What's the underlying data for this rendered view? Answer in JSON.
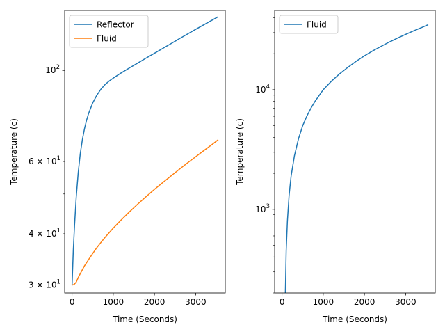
{
  "chart_data": [
    {
      "type": "line",
      "xlabel": "Time (Seconds)",
      "ylabel": "Temperature (c)",
      "yscale": "log",
      "xlim": [
        -180,
        3720
      ],
      "ylim": [
        28.7,
        140.0
      ],
      "x_ticks": [
        {
          "value": 0,
          "label": "0"
        },
        {
          "value": 1000,
          "label": "1000"
        },
        {
          "value": 2000,
          "label": "2000"
        },
        {
          "value": 3000,
          "label": "3000"
        }
      ],
      "y_major_ticks": [
        {
          "value": 100,
          "label": "10",
          "exp": "2"
        }
      ],
      "y_minor_ticks": [
        {
          "value": 30,
          "label": "3 × 10",
          "exp": "1"
        },
        {
          "value": 40,
          "label": "4 × 10",
          "exp": "1"
        },
        {
          "value": 60,
          "label": "6 × 10",
          "exp": "1"
        },
        {
          "value": 50,
          "label": "",
          "exp": ""
        }
      ],
      "legend": "upper-left",
      "series": [
        {
          "name": "Reflector",
          "color": "#1f77b4",
          "x": [
            0,
            30,
            60,
            100,
            150,
            200,
            250,
            300,
            350,
            400,
            500,
            600,
            700,
            800,
            900,
            1000,
            1200,
            1400,
            1600,
            1800,
            2000,
            2200,
            2400,
            2600,
            2800,
            3000,
            3200,
            3400,
            3550
          ],
          "y": [
            30.0,
            36.5,
            42.0,
            49.0,
            56.5,
            62.8,
            67.8,
            72.0,
            75.5,
            78.5,
            83.3,
            87.0,
            90.0,
            92.4,
            94.2,
            95.8,
            98.7,
            101.5,
            104.3,
            107.2,
            110.1,
            113.1,
            116.2,
            119.4,
            122.6,
            125.9,
            129.2,
            132.6,
            135.2
          ]
        },
        {
          "name": "Fluid",
          "color": "#ff7f0e",
          "x": [
            0,
            50,
            100,
            150,
            200,
            300,
            400,
            500,
            600,
            700,
            800,
            1000,
            1200,
            1400,
            1600,
            1800,
            2000,
            2200,
            2400,
            2600,
            2800,
            3000,
            3200,
            3400,
            3550
          ],
          "y": [
            30.0,
            30.1,
            30.5,
            31.3,
            32.0,
            33.4,
            34.6,
            35.8,
            37.0,
            38.1,
            39.2,
            41.3,
            43.3,
            45.3,
            47.3,
            49.3,
            51.3,
            53.3,
            55.3,
            57.4,
            59.5,
            61.6,
            63.8,
            66.0,
            67.8
          ]
        }
      ]
    },
    {
      "type": "line",
      "xlabel": "Time (Seconds)",
      "ylabel": "Temperature (c)",
      "yscale": "log",
      "xlim": [
        -180,
        3720
      ],
      "ylim": [
        200,
        46000
      ],
      "x_ticks": [
        {
          "value": 0,
          "label": "0"
        },
        {
          "value": 1000,
          "label": "1000"
        },
        {
          "value": 2000,
          "label": "2000"
        },
        {
          "value": 3000,
          "label": "3000"
        }
      ],
      "y_major_ticks": [
        {
          "value": 1000,
          "label": "10",
          "exp": "3"
        },
        {
          "value": 10000,
          "label": "10",
          "exp": "4"
        }
      ],
      "legend": "upper-left",
      "series": [
        {
          "name": "Fluid",
          "color": "#1f77b4",
          "x": [
            80,
            100,
            130,
            170,
            220,
            300,
            400,
            500,
            600,
            700,
            800,
            1000,
            1200,
            1400,
            1600,
            1800,
            2000,
            2200,
            2400,
            2600,
            2800,
            3000,
            3200,
            3400,
            3550
          ],
          "y": [
            200,
            450,
            800,
            1300,
            1900,
            2800,
            3900,
            5000,
            6000,
            7000,
            8000,
            10000,
            11800,
            13600,
            15400,
            17300,
            19200,
            21100,
            23000,
            25000,
            27000,
            29000,
            31100,
            33200,
            35000
          ]
        }
      ]
    }
  ]
}
